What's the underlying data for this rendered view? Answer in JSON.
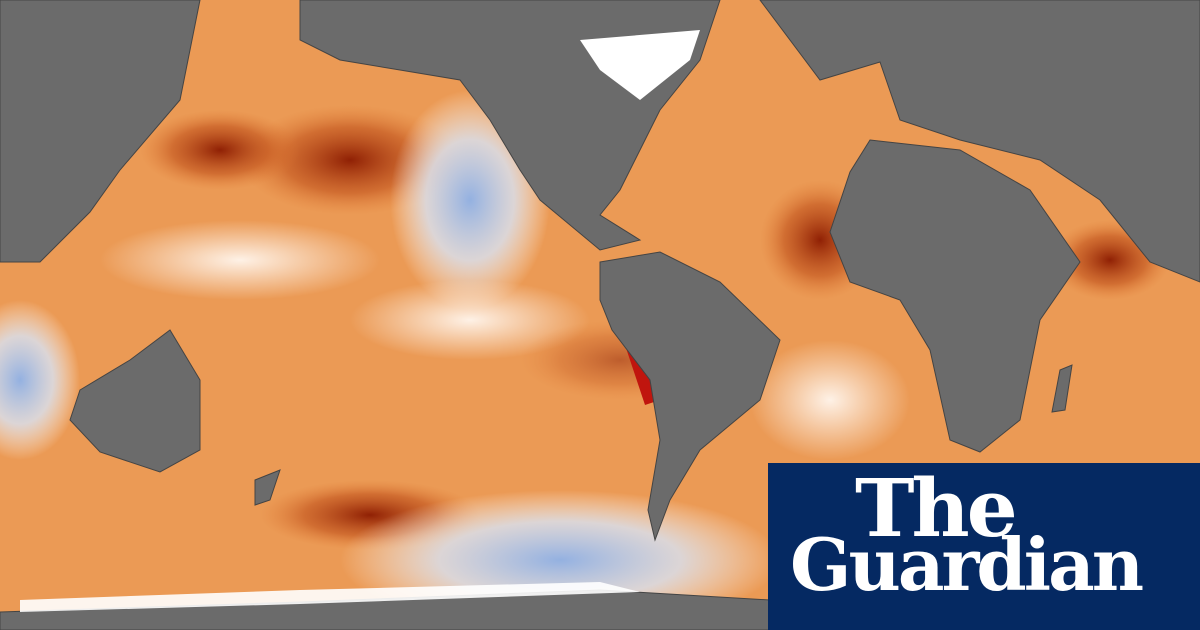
{
  "logo": {
    "line1": "The",
    "line2": "Guardian"
  }
}
